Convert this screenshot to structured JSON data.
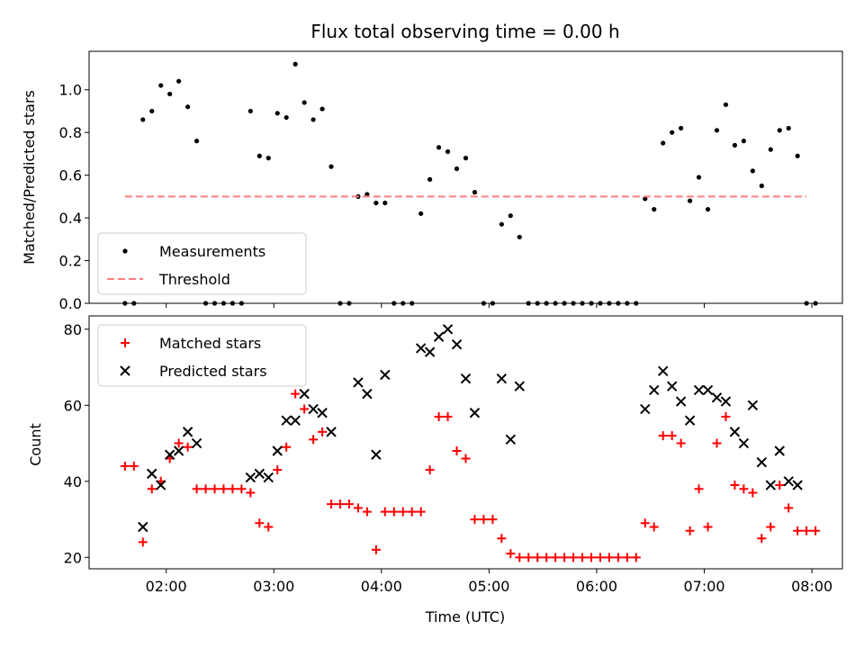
{
  "chart_data": [
    {
      "type": "scatter",
      "title": "Flux total observing time = 0.00 h",
      "xlabel": "",
      "ylabel": "Matched/Predicted stars",
      "xlim": [
        "01:17",
        "08:17"
      ],
      "ylim": [
        0,
        1.18
      ],
      "yticks": [
        "0.0",
        "0.2",
        "0.4",
        "0.6",
        "0.8",
        "1.0"
      ],
      "legend_position": "lower-left",
      "series": [
        {
          "name": "Measurements",
          "marker": "dot",
          "color": "#000000",
          "points": [
            [
              "01:37",
              0.0
            ],
            [
              "01:42",
              0.0
            ],
            [
              "01:47",
              0.86
            ],
            [
              "01:52",
              0.9
            ],
            [
              "01:57",
              1.02
            ],
            [
              "02:02",
              0.98
            ],
            [
              "02:07",
              1.04
            ],
            [
              "02:12",
              0.92
            ],
            [
              "02:17",
              0.76
            ],
            [
              "02:22",
              0.0
            ],
            [
              "02:27",
              0.0
            ],
            [
              "02:32",
              0.0
            ],
            [
              "02:37",
              0.0
            ],
            [
              "02:42",
              0.0
            ],
            [
              "02:47",
              0.9
            ],
            [
              "02:52",
              0.69
            ],
            [
              "02:57",
              0.68
            ],
            [
              "03:02",
              0.89
            ],
            [
              "03:07",
              0.87
            ],
            [
              "03:12",
              1.12
            ],
            [
              "03:17",
              0.94
            ],
            [
              "03:22",
              0.86
            ],
            [
              "03:27",
              0.91
            ],
            [
              "03:32",
              0.64
            ],
            [
              "03:37",
              0.0
            ],
            [
              "03:42",
              0.0
            ],
            [
              "03:47",
              0.5
            ],
            [
              "03:52",
              0.51
            ],
            [
              "03:57",
              0.47
            ],
            [
              "04:02",
              0.47
            ],
            [
              "04:07",
              0.0
            ],
            [
              "04:12",
              0.0
            ],
            [
              "04:17",
              0.0
            ],
            [
              "04:22",
              0.42
            ],
            [
              "04:27",
              0.58
            ],
            [
              "04:32",
              0.73
            ],
            [
              "04:37",
              0.71
            ],
            [
              "04:42",
              0.63
            ],
            [
              "04:47",
              0.68
            ],
            [
              "04:52",
              0.52
            ],
            [
              "04:57",
              0.0
            ],
            [
              "05:02",
              0.0
            ],
            [
              "05:07",
              0.37
            ],
            [
              "05:12",
              0.41
            ],
            [
              "05:17",
              0.31
            ],
            [
              "05:22",
              0.0
            ],
            [
              "05:27",
              0.0
            ],
            [
              "05:32",
              0.0
            ],
            [
              "05:37",
              0.0
            ],
            [
              "05:42",
              0.0
            ],
            [
              "05:47",
              0.0
            ],
            [
              "05:52",
              0.0
            ],
            [
              "05:57",
              0.0
            ],
            [
              "06:02",
              0.0
            ],
            [
              "06:07",
              0.0
            ],
            [
              "06:12",
              0.0
            ],
            [
              "06:17",
              0.0
            ],
            [
              "06:22",
              0.0
            ],
            [
              "06:27",
              0.49
            ],
            [
              "06:32",
              0.44
            ],
            [
              "06:37",
              0.75
            ],
            [
              "06:42",
              0.8
            ],
            [
              "06:47",
              0.82
            ],
            [
              "06:52",
              0.48
            ],
            [
              "06:57",
              0.59
            ],
            [
              "07:02",
              0.44
            ],
            [
              "07:07",
              0.81
            ],
            [
              "07:12",
              0.93
            ],
            [
              "07:17",
              0.74
            ],
            [
              "07:22",
              0.76
            ],
            [
              "07:27",
              0.62
            ],
            [
              "07:32",
              0.55
            ],
            [
              "07:37",
              0.72
            ],
            [
              "07:42",
              0.81
            ],
            [
              "07:47",
              0.82
            ],
            [
              "07:52",
              0.69
            ],
            [
              "07:57",
              0.0
            ],
            [
              "08:02",
              0.0
            ]
          ]
        },
        {
          "name": "Threshold",
          "style": "dashed",
          "color": "#ff7f7f",
          "points": [
            [
              "01:37",
              0.5
            ],
            [
              "07:57",
              0.5
            ]
          ]
        }
      ]
    },
    {
      "type": "scatter",
      "title": "",
      "xlabel": "Time (UTC)",
      "ylabel": "Count",
      "xlim": [
        "01:17",
        "08:17"
      ],
      "ylim": [
        17,
        83.5
      ],
      "xticks": [
        "02:00",
        "03:00",
        "04:00",
        "05:00",
        "06:00",
        "07:00",
        "08:00"
      ],
      "yticks": [
        "20",
        "40",
        "60",
        "80"
      ],
      "legend_position": "upper-left",
      "series": [
        {
          "name": "Matched stars",
          "marker": "plus",
          "color": "#ff0000",
          "points": [
            [
              "01:37",
              44
            ],
            [
              "01:42",
              44
            ],
            [
              "01:47",
              24
            ],
            [
              "01:52",
              38
            ],
            [
              "01:57",
              40
            ],
            [
              "02:02",
              46
            ],
            [
              "02:07",
              50
            ],
            [
              "02:12",
              49
            ],
            [
              "02:17",
              38
            ],
            [
              "02:22",
              38
            ],
            [
              "02:27",
              38
            ],
            [
              "02:32",
              38
            ],
            [
              "02:37",
              38
            ],
            [
              "02:42",
              38
            ],
            [
              "02:47",
              37
            ],
            [
              "02:52",
              29
            ],
            [
              "02:57",
              28
            ],
            [
              "03:02",
              43
            ],
            [
              "03:07",
              49
            ],
            [
              "03:12",
              63
            ],
            [
              "03:17",
              59
            ],
            [
              "03:22",
              51
            ],
            [
              "03:27",
              53
            ],
            [
              "03:32",
              34
            ],
            [
              "03:37",
              34
            ],
            [
              "03:42",
              34
            ],
            [
              "03:47",
              33
            ],
            [
              "03:52",
              32
            ],
            [
              "03:57",
              22
            ],
            [
              "04:02",
              32
            ],
            [
              "04:07",
              32
            ],
            [
              "04:12",
              32
            ],
            [
              "04:17",
              32
            ],
            [
              "04:22",
              32
            ],
            [
              "04:27",
              43
            ],
            [
              "04:32",
              57
            ],
            [
              "04:37",
              57
            ],
            [
              "04:42",
              48
            ],
            [
              "04:47",
              46
            ],
            [
              "04:52",
              30
            ],
            [
              "04:57",
              30
            ],
            [
              "05:02",
              30
            ],
            [
              "05:07",
              25
            ],
            [
              "05:12",
              21
            ],
            [
              "05:17",
              20
            ],
            [
              "05:22",
              20
            ],
            [
              "05:27",
              20
            ],
            [
              "05:32",
              20
            ],
            [
              "05:37",
              20
            ],
            [
              "05:42",
              20
            ],
            [
              "05:47",
              20
            ],
            [
              "05:52",
              20
            ],
            [
              "05:57",
              20
            ],
            [
              "06:02",
              20
            ],
            [
              "06:07",
              20
            ],
            [
              "06:12",
              20
            ],
            [
              "06:17",
              20
            ],
            [
              "06:22",
              20
            ],
            [
              "06:27",
              29
            ],
            [
              "06:32",
              28
            ],
            [
              "06:37",
              52
            ],
            [
              "06:42",
              52
            ],
            [
              "06:47",
              50
            ],
            [
              "06:52",
              27
            ],
            [
              "06:57",
              38
            ],
            [
              "07:02",
              28
            ],
            [
              "07:07",
              50
            ],
            [
              "07:12",
              57
            ],
            [
              "07:17",
              39
            ],
            [
              "07:22",
              38
            ],
            [
              "07:27",
              37
            ],
            [
              "07:32",
              25
            ],
            [
              "07:37",
              28
            ],
            [
              "07:42",
              39
            ],
            [
              "07:47",
              33
            ],
            [
              "07:52",
              27
            ],
            [
              "07:57",
              27
            ],
            [
              "08:02",
              27
            ]
          ]
        },
        {
          "name": "Predicted stars",
          "marker": "x",
          "color": "#000000",
          "points": [
            [
              "01:47",
              28
            ],
            [
              "01:52",
              42
            ],
            [
              "01:57",
              39
            ],
            [
              "02:02",
              47
            ],
            [
              "02:07",
              48
            ],
            [
              "02:12",
              53
            ],
            [
              "02:17",
              50
            ],
            [
              "02:47",
              41
            ],
            [
              "02:52",
              42
            ],
            [
              "02:57",
              41
            ],
            [
              "03:02",
              48
            ],
            [
              "03:07",
              56
            ],
            [
              "03:12",
              56
            ],
            [
              "03:17",
              63
            ],
            [
              "03:22",
              59
            ],
            [
              "03:27",
              58
            ],
            [
              "03:32",
              53
            ],
            [
              "03:47",
              66
            ],
            [
              "03:52",
              63
            ],
            [
              "03:57",
              47
            ],
            [
              "04:02",
              68
            ],
            [
              "04:22",
              75
            ],
            [
              "04:27",
              74
            ],
            [
              "04:32",
              78
            ],
            [
              "04:37",
              80
            ],
            [
              "04:42",
              76
            ],
            [
              "04:47",
              67
            ],
            [
              "04:52",
              58
            ],
            [
              "05:07",
              67
            ],
            [
              "05:12",
              51
            ],
            [
              "05:17",
              65
            ],
            [
              "06:27",
              59
            ],
            [
              "06:32",
              64
            ],
            [
              "06:37",
              69
            ],
            [
              "06:42",
              65
            ],
            [
              "06:47",
              61
            ],
            [
              "06:52",
              56
            ],
            [
              "06:57",
              64
            ],
            [
              "07:02",
              64
            ],
            [
              "07:07",
              62
            ],
            [
              "07:12",
              61
            ],
            [
              "07:17",
              53
            ],
            [
              "07:22",
              50
            ],
            [
              "07:27",
              60
            ],
            [
              "07:32",
              45
            ],
            [
              "07:37",
              39
            ],
            [
              "07:42",
              48
            ],
            [
              "07:47",
              40
            ],
            [
              "07:52",
              39
            ]
          ]
        }
      ]
    }
  ]
}
